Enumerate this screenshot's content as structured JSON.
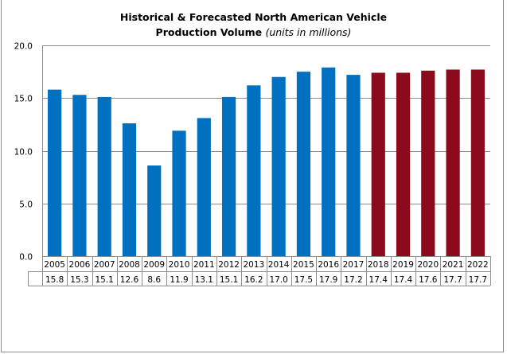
{
  "chart_data": {
    "type": "bar",
    "title_main": "Historical & Forecasted North American Vehicle",
    "title_line2": "Production Volume",
    "title_units": "(units in millions)",
    "xlabel": "",
    "ylabel": "",
    "ylim": [
      0,
      20
    ],
    "yticks": [
      "0.0",
      "5.0",
      "10.0",
      "15.0",
      "20.0"
    ],
    "ytick_values": [
      0,
      5,
      10,
      15,
      20
    ],
    "grid": true,
    "legend": "none",
    "data_table": true,
    "categories": [
      "2005",
      "2006",
      "2007",
      "2008",
      "2009",
      "2010",
      "2011",
      "2012",
      "2013",
      "2014",
      "2015",
      "2016",
      "2017",
      "2018",
      "2019",
      "2020",
      "2021",
      "2022"
    ],
    "values": [
      15.8,
      15.3,
      15.1,
      12.6,
      8.6,
      11.9,
      13.1,
      15.1,
      16.2,
      17.0,
      17.5,
      17.9,
      17.2,
      17.4,
      17.4,
      17.6,
      17.7,
      17.7
    ],
    "value_labels": [
      "15.8",
      "15.3",
      "15.1",
      "12.6",
      "8.6",
      "11.9",
      "13.1",
      "15.1",
      "16.2",
      "17.0",
      "17.5",
      "17.9",
      "17.2",
      "17.4",
      "17.4",
      "17.6",
      "17.7",
      "17.7"
    ],
    "series": [
      {
        "name": "Historical",
        "years": "2005-2017",
        "color": "#0070c0"
      },
      {
        "name": "Forecasted",
        "years": "2018-2022",
        "color": "#8b0a1c"
      }
    ],
    "forecast_start_index": 13
  },
  "colors": {
    "historical": "#0070c0",
    "forecast": "#8b0a1c",
    "grid": "#8c8c8c",
    "border": "#8c8c8c"
  }
}
